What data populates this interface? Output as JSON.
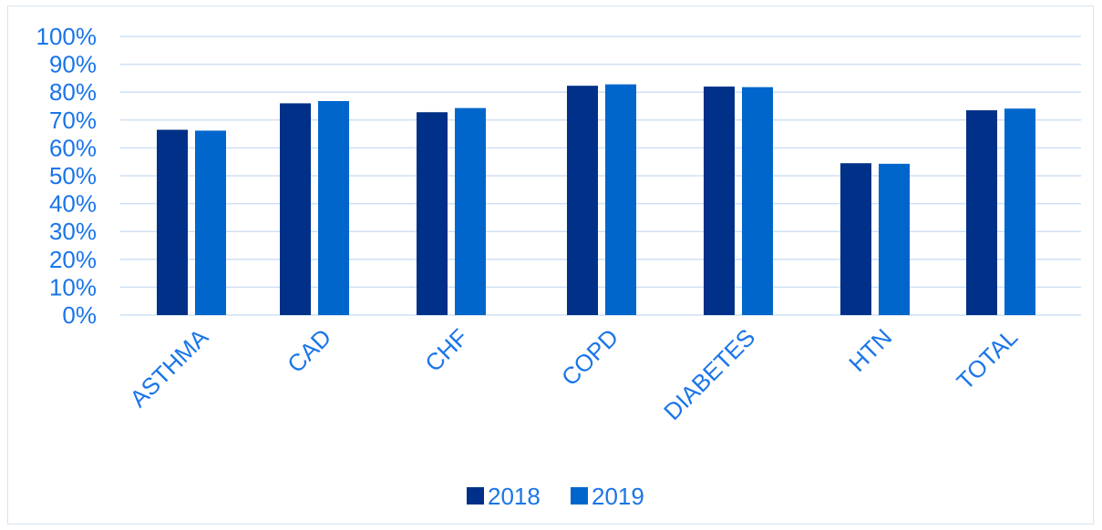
{
  "chart_data": {
    "type": "bar",
    "title": "",
    "xlabel": "",
    "ylabel": "",
    "categories": [
      "ASTHMA",
      "CAD",
      "CHF",
      "COPD",
      "DIABETES",
      "HTN",
      "TOTAL"
    ],
    "series": [
      {
        "name": "2018",
        "color": "#003087",
        "values": [
          66.5,
          76,
          72.8,
          82.3,
          82,
          54.5,
          73.5
        ]
      },
      {
        "name": "2019",
        "color": "#0066cc",
        "values": [
          66.2,
          76.8,
          74.3,
          82.8,
          81.8,
          54.3,
          74.1
        ]
      }
    ],
    "ylim": [
      0,
      100
    ],
    "yticks": [
      "0%",
      "10%",
      "20%",
      "30%",
      "40%",
      "50%",
      "60%",
      "70%",
      "80%",
      "90%",
      "100%"
    ],
    "grid": true,
    "legend": "bottom",
    "text_color": "#1a75e8",
    "grid_color": "#cfe0f3"
  }
}
